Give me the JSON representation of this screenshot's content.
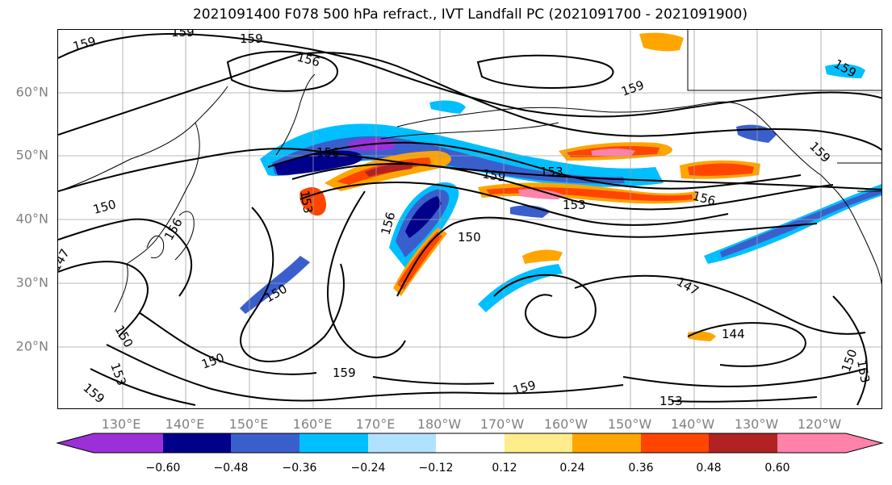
{
  "title": "2021091400 F078 500 hPa refract., IVT Landfall PC (2021091700 - 2021091900)",
  "lat_labels": [
    "60°N",
    "50°N",
    "40°N",
    "30°N",
    "20°N"
  ],
  "lon_labels": [
    "130°E",
    "140°E",
    "150°E",
    "160°E",
    "170°E",
    "180°W",
    "170°W",
    "160°W",
    "150°W",
    "140°W",
    "130°W",
    "120°W"
  ],
  "contour_labels": [
    "159",
    "159",
    "156",
    "159",
    "159",
    "156",
    "159",
    "153",
    "153",
    "153",
    "150",
    "156",
    "156",
    "159",
    "159",
    "147",
    "150",
    "150",
    "150",
    "150",
    "147",
    "144",
    "153",
    "156",
    "159",
    "159",
    "150",
    "153",
    "153",
    "159"
  ],
  "colorbar": {
    "ticks": [
      "−0.60",
      "−0.48",
      "−0.36",
      "−0.24",
      "−0.12",
      "0.12",
      "0.24",
      "0.36",
      "0.48",
      "0.60"
    ],
    "colors": [
      "#9b30d9",
      "#00008b",
      "#3a5fcd",
      "#00bfff",
      "#b0e2ff",
      "#ffffff",
      "#ffec8b",
      "#ffa500",
      "#ff4500",
      "#b22222",
      "#ff82ab"
    ]
  }
}
